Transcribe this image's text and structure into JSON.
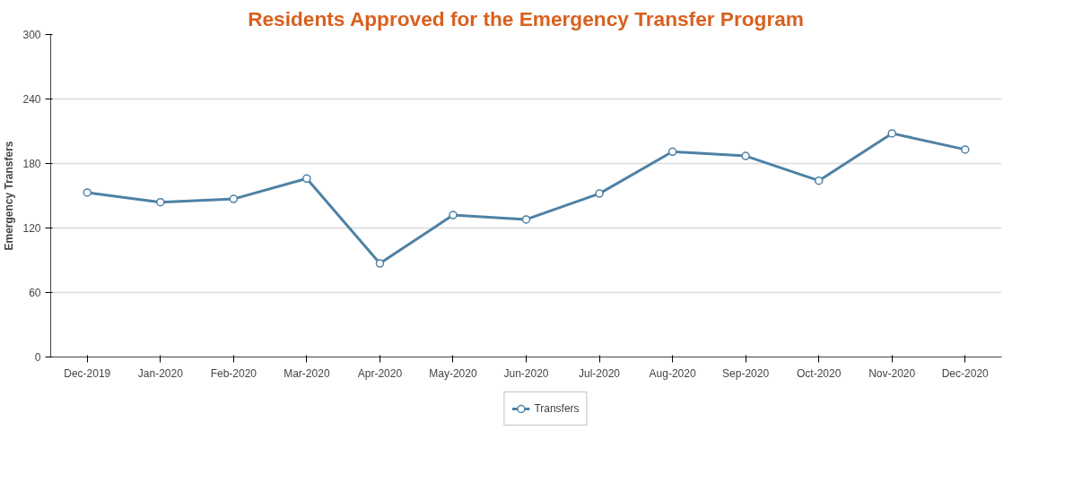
{
  "chart_data": {
    "type": "line",
    "title": "Residents Approved for the Emergency Transfer Program",
    "ylabel": "Emergency Transfers",
    "categories": [
      "Dec-2019",
      "Jan-2020",
      "Feb-2020",
      "Mar-2020",
      "Apr-2020",
      "May-2020",
      "Jun-2020",
      "Jul-2020",
      "Aug-2020",
      "Sep-2020",
      "Oct-2020",
      "Nov-2020",
      "Dec-2020"
    ],
    "series": [
      {
        "name": "Transfers",
        "color": "#4f81a5",
        "values": [
          153,
          144,
          147,
          166,
          87,
          132,
          128,
          152,
          191,
          187,
          164,
          208,
          193
        ]
      }
    ],
    "ylim": [
      0,
      300
    ],
    "yticks": [
      0,
      60,
      120,
      180,
      240,
      300
    ],
    "grid": "y",
    "legend": "bottom",
    "marker": "circle",
    "line_style": "solid"
  }
}
